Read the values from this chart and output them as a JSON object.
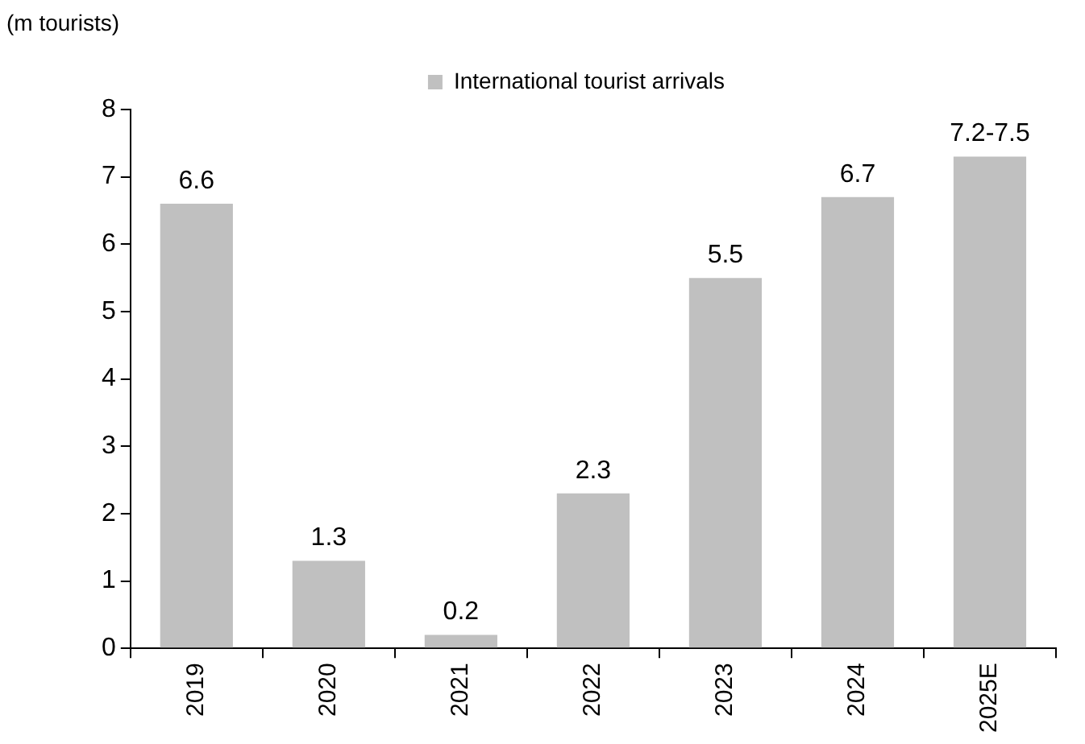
{
  "chart_data": {
    "type": "bar",
    "ylabel": "(m tourists)",
    "categories": [
      "2019",
      "2020",
      "2021",
      "2022",
      "2023",
      "2024",
      "2025E"
    ],
    "series": [
      {
        "name": "International tourist arrivals",
        "color": "#c0c0c0",
        "values": [
          6.6,
          1.3,
          0.2,
          2.3,
          5.5,
          6.7,
          7.3
        ],
        "value_labels": [
          "6.6",
          "1.3",
          "0.2",
          "2.3",
          "5.5",
          "6.7",
          "7.2-7.5"
        ]
      }
    ],
    "ylim": [
      0,
      8
    ],
    "yticks": [
      0,
      1,
      2,
      3,
      4,
      5,
      6,
      7,
      8
    ],
    "legend": "top"
  }
}
